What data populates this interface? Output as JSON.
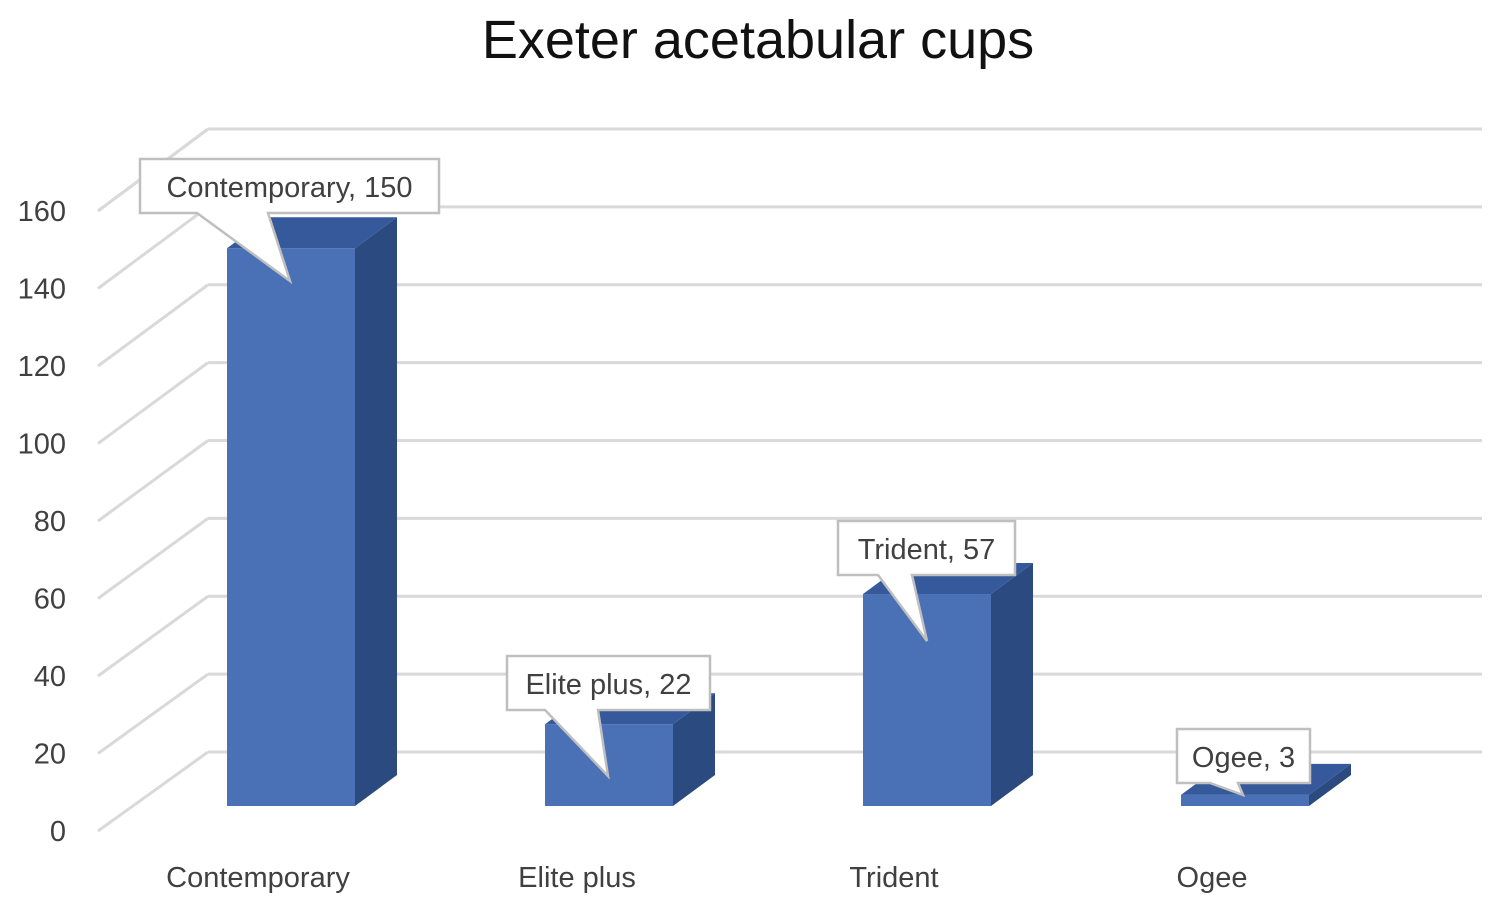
{
  "chart_data": {
    "type": "bar",
    "title": "Exeter acetabular cups",
    "categories": [
      "Contemporary",
      "Elite plus",
      "Trident",
      "Ogee"
    ],
    "values": [
      150,
      22,
      57,
      3
    ],
    "data_labels": [
      "Contemporary, 150",
      "Elite plus, 22",
      "Trident, 57",
      "Ogee, 3"
    ],
    "y_ticks": [
      "0",
      "20",
      "40",
      "60",
      "80",
      "100",
      "120",
      "140",
      "160"
    ],
    "ylim": [
      0,
      160
    ],
    "grid": true,
    "legend": "none",
    "style": "3d-column",
    "colors": {
      "bar_front": "#4A71B6",
      "bar_side": "#2A4A80",
      "bar_top": "#35599A",
      "grid": "#D9D9D9"
    }
  }
}
